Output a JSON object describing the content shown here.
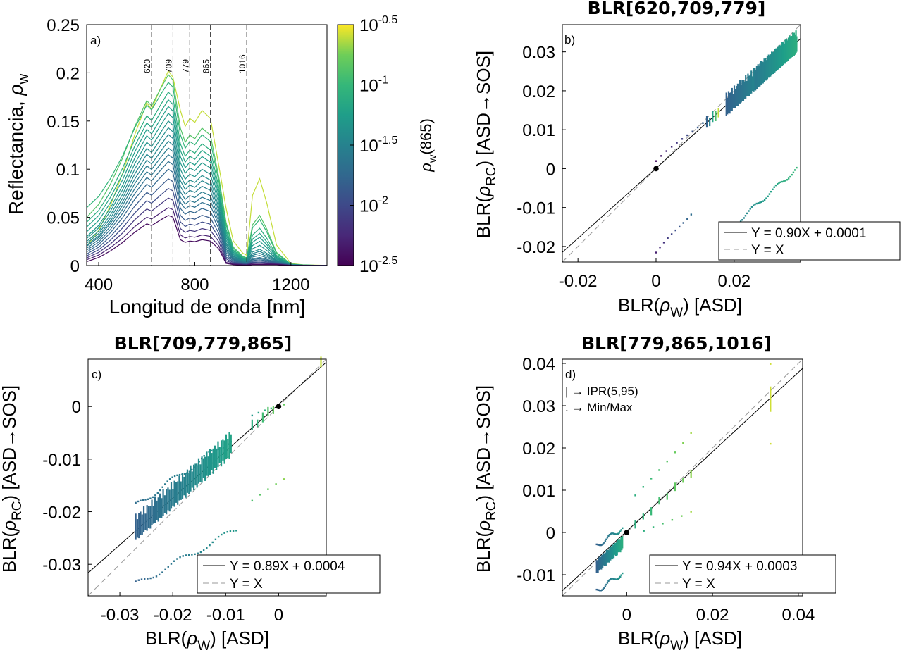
{
  "chart_data": [
    {
      "type": "line",
      "panel_label": "a)",
      "xlabel": "Longitud de onda [nm]",
      "ylabel": "Reflectancia, ",
      "ylabel_sym": "ρ",
      "ylabel_sub": "w",
      "xlim": [
        350,
        1350
      ],
      "ylim": [
        0,
        0.25
      ],
      "xticks": [
        400,
        800,
        1200
      ],
      "yticks": [
        0,
        0.05,
        0.1,
        0.15,
        0.2,
        0.25
      ],
      "ytick_labels": [
        "0",
        "0.05",
        "0.1",
        "0.15",
        "0.2",
        "0.25"
      ],
      "vlines": [
        {
          "x": 620,
          "label": "620"
        },
        {
          "x": 709,
          "label": "709"
        },
        {
          "x": 779,
          "label": "779"
        },
        {
          "x": 865,
          "label": "865"
        },
        {
          "x": 1016,
          "label": "1016"
        }
      ],
      "colorbar": {
        "label_sym": "ρ",
        "label_sub": "w",
        "label_rest": "(865)",
        "scale": "log",
        "range_exp": [
          -2.5,
          -0.5
        ],
        "ticks": [
          {
            "base": "10",
            "exp": "-2.5"
          },
          {
            "base": "10",
            "exp": "-2"
          },
          {
            "base": "10",
            "exp": "-1.5"
          },
          {
            "base": "10",
            "exp": "-1"
          },
          {
            "base": "10",
            "exp": "-0.5"
          }
        ]
      },
      "spectra": [
        {
          "peak": 0.202,
          "p865": 0.213,
          "p1070": 0.086,
          "base": 0.02,
          "cval": 0.95
        },
        {
          "peak": 0.198,
          "p865": 0.16,
          "p1070": 0.048,
          "base": 0.05,
          "cval": 0.82
        },
        {
          "peak": 0.19,
          "p865": 0.15,
          "p1070": 0.044,
          "base": 0.06,
          "cval": 0.74
        },
        {
          "peak": 0.18,
          "p865": 0.135,
          "p1070": 0.035,
          "base": 0.045,
          "cval": 0.7
        },
        {
          "peak": 0.172,
          "p865": 0.125,
          "p1070": 0.03,
          "base": 0.04,
          "cval": 0.66
        },
        {
          "peak": 0.165,
          "p865": 0.115,
          "p1070": 0.026,
          "base": 0.035,
          "cval": 0.62
        },
        {
          "peak": 0.158,
          "p865": 0.105,
          "p1070": 0.022,
          "base": 0.03,
          "cval": 0.6
        },
        {
          "peak": 0.15,
          "p865": 0.095,
          "p1070": 0.018,
          "base": 0.028,
          "cval": 0.57
        },
        {
          "peak": 0.143,
          "p865": 0.085,
          "p1070": 0.014,
          "base": 0.025,
          "cval": 0.55
        },
        {
          "peak": 0.136,
          "p865": 0.078,
          "p1070": 0.012,
          "base": 0.023,
          "cval": 0.52
        },
        {
          "peak": 0.129,
          "p865": 0.07,
          "p1070": 0.01,
          "base": 0.021,
          "cval": 0.5
        },
        {
          "peak": 0.122,
          "p865": 0.062,
          "p1070": 0.008,
          "base": 0.02,
          "cval": 0.47
        },
        {
          "peak": 0.115,
          "p865": 0.055,
          "p1070": 0.006,
          "base": 0.018,
          "cval": 0.44
        },
        {
          "peak": 0.108,
          "p865": 0.048,
          "p1070": 0.005,
          "base": 0.016,
          "cval": 0.41
        },
        {
          "peak": 0.1,
          "p865": 0.04,
          "p1070": 0.004,
          "base": 0.014,
          "cval": 0.37
        },
        {
          "peak": 0.09,
          "p865": 0.032,
          "p1070": 0.003,
          "base": 0.012,
          "cval": 0.32
        },
        {
          "peak": 0.08,
          "p865": 0.025,
          "p1070": 0.002,
          "base": 0.01,
          "cval": 0.26
        },
        {
          "peak": 0.07,
          "p865": 0.018,
          "p1070": 0.001,
          "base": 0.008,
          "cval": 0.18
        },
        {
          "peak": 0.06,
          "p865": 0.012,
          "p1070": 0.001,
          "base": 0.006,
          "cval": 0.1
        },
        {
          "peak": 0.052,
          "p865": 0.008,
          "p1070": 0.0,
          "base": 0.004,
          "cval": 0.03
        }
      ]
    },
    {
      "type": "scatter",
      "title": "BLR[620,709,779]",
      "panel_label": "b)",
      "xlabel_pre": "BLR(",
      "xlabel_sym": "ρ",
      "xlabel_sub": "W",
      "xlabel_post": ") [ASD]",
      "ylabel_pre": "BLR(",
      "ylabel_sym": "ρ",
      "ylabel_sub": "RC",
      "ylabel_post": ") [ASD→SOS]",
      "xlim": [
        -0.024,
        0.037
      ],
      "ylim": [
        -0.024,
        0.037
      ],
      "xticks": [
        -0.02,
        0,
        0.02
      ],
      "xtick_labels": [
        "-0.02",
        "0",
        "0.02"
      ],
      "yticks": [
        -0.02,
        -0.01,
        0,
        0.01,
        0.02,
        0.03
      ],
      "ytick_labels": [
        "-0.02",
        "-0.01",
        "0",
        "0.01",
        "0.02",
        "0.03"
      ],
      "fit": {
        "slope": 0.9,
        "intercept": 0.0001,
        "label": "Y = 0.90X + 0.0001"
      },
      "identity_label": "Y = X",
      "legend_position": "bottom-right",
      "clusters": [
        {
          "x0": 0.025,
          "x1": 0.036,
          "n": 70,
          "slope": 0.9,
          "off": 0.0,
          "len": 0.006,
          "c0": 0.45,
          "c1": 0.7
        },
        {
          "x0": 0.018,
          "x1": 0.025,
          "n": 25,
          "slope": 0.9,
          "off": 0.0,
          "len": 0.006,
          "c0": 0.35,
          "c1": 0.5
        },
        {
          "x0": 0.013,
          "x1": 0.016,
          "n": 5,
          "slope": 0.9,
          "off": 0.0,
          "len": 0.003,
          "c0": 0.35,
          "c1": 0.95
        }
      ],
      "dots": [
        {
          "x0": 0.018,
          "x1": 0.036,
          "n": 45,
          "slope": 0.9,
          "off": -0.0325,
          "c0": 0.45,
          "c1": 0.75
        },
        {
          "x0": 0.0,
          "x1": 0.009,
          "n": 10,
          "slope": 1.2,
          "off": -0.022,
          "c0": 0.1,
          "c1": 0.4
        },
        {
          "x0": 0.0,
          "x1": 0.012,
          "n": 10,
          "slope": 0.9,
          "off": 0.0015,
          "c0": 0.05,
          "c1": 0.35
        }
      ],
      "black_dot": [
        0,
        0
      ]
    },
    {
      "type": "scatter",
      "title": "BLR[709,779,865]",
      "panel_label": "c)",
      "xlabel_pre": "BLR(",
      "xlabel_sym": "ρ",
      "xlabel_sub": "W",
      "xlabel_post": ") [ASD]",
      "ylabel_pre": "BLR(",
      "ylabel_sym": "ρ",
      "ylabel_sub": "RC",
      "ylabel_post": ") [ASD→SOS]",
      "xlim": [
        -0.036,
        0.009
      ],
      "ylim": [
        -0.036,
        0.009
      ],
      "xticks": [
        -0.03,
        -0.02,
        -0.01,
        0
      ],
      "xtick_labels": [
        "-0.03",
        "-0.02",
        "-0.01",
        "0"
      ],
      "yticks": [
        -0.03,
        -0.02,
        -0.01,
        0
      ],
      "ytick_labels": [
        "-0.03",
        "-0.02",
        "-0.01",
        "0"
      ],
      "fit": {
        "slope": 0.89,
        "intercept": 0.0004,
        "label": "Y = 0.89X + 0.0004"
      },
      "identity_label": "Y = X",
      "legend_position": "bottom-right",
      "clusters": [
        {
          "x0": -0.027,
          "x1": -0.009,
          "n": 60,
          "slope": 0.89,
          "off": 0.0008,
          "len": 0.005,
          "c0": 0.35,
          "c1": 0.65
        },
        {
          "x0": -0.005,
          "x1": -0.001,
          "n": 5,
          "slope": 0.89,
          "off": 0.0006,
          "len": 0.002,
          "c0": 0.7,
          "c1": 0.85
        },
        {
          "x0": 0.008,
          "x1": 0.008,
          "n": 1,
          "slope": 0.89,
          "off": 0.001,
          "len": 0.002,
          "c0": 0.95,
          "c1": 0.95
        }
      ],
      "dots": [
        {
          "x0": -0.027,
          "x1": -0.009,
          "n": 40,
          "slope": 0.7,
          "off": 0.0,
          "c0": 0.4,
          "c1": 0.6
        },
        {
          "x0": -0.027,
          "x1": -0.008,
          "n": 35,
          "slope": 0.55,
          "off": -0.019,
          "c0": 0.35,
          "c1": 0.6
        },
        {
          "x0": -0.005,
          "x1": 0.001,
          "n": 5,
          "slope": 0.8,
          "off": -0.0145,
          "c0": 0.8,
          "c1": 0.9
        },
        {
          "x0": -0.005,
          "x1": 0.001,
          "n": 6,
          "slope": 0.5,
          "off": 0.0002,
          "c0": 0.6,
          "c1": 0.85
        }
      ],
      "black_dot": [
        0,
        0
      ]
    },
    {
      "type": "scatter",
      "title": "BLR[779,865,1016]",
      "panel_label": "d)",
      "annotations": [
        "| → IPR(5,95)",
        ". → Min/Max"
      ],
      "xlabel_pre": "BLR(",
      "xlabel_sym": "ρ",
      "xlabel_sub": "W",
      "xlabel_post": ") [ASD]",
      "ylabel_pre": "BLR(",
      "ylabel_sym": "ρ",
      "ylabel_sub": "RC",
      "ylabel_post": ") [ASD→SOS]",
      "xlim": [
        -0.015,
        0.041
      ],
      "ylim": [
        -0.015,
        0.041
      ],
      "xticks": [
        0,
        0.02,
        0.04
      ],
      "xtick_labels": [
        "0",
        "0.02",
        "0.04"
      ],
      "yticks": [
        -0.01,
        0,
        0.01,
        0.02,
        0.03,
        0.04
      ],
      "ytick_labels": [
        "-0.01",
        "0",
        "0.01",
        "0.02",
        "0.03",
        "0.04"
      ],
      "fit": {
        "slope": 0.94,
        "intercept": 0.0003,
        "label": "Y = 0.94X + 0.0003"
      },
      "identity_label": "Y = X",
      "legend_position": "bottom-right",
      "clusters": [
        {
          "x0": -0.007,
          "x1": -0.001,
          "n": 40,
          "slope": 0.94,
          "off": -0.0015,
          "len": 0.003,
          "c0": 0.35,
          "c1": 0.7
        },
        {
          "x0": 0.002,
          "x1": 0.015,
          "n": 8,
          "slope": 0.94,
          "off": 0.0,
          "len": 0.002,
          "c0": 0.7,
          "c1": 0.9
        },
        {
          "x0": 0.0335,
          "x1": 0.0335,
          "n": 1,
          "slope": 0.94,
          "off": 0.0,
          "len": 0.006,
          "c0": 0.96,
          "c1": 0.96
        }
      ],
      "dots": [
        {
          "x0": -0.007,
          "x1": -0.001,
          "n": 25,
          "slope": 0.7,
          "off": 0.0017,
          "c0": 0.35,
          "c1": 0.6
        },
        {
          "x0": -0.007,
          "x1": -0.001,
          "n": 25,
          "slope": 0.7,
          "off": -0.009,
          "c0": 0.35,
          "c1": 0.6
        },
        {
          "x0": 0.002,
          "x1": 0.015,
          "n": 8,
          "slope": 1.2,
          "off": 0.006,
          "c0": 0.7,
          "c1": 0.92
        },
        {
          "x0": 0.004,
          "x1": 0.015,
          "n": 6,
          "slope": 0.5,
          "off": -0.002,
          "c0": 0.7,
          "c1": 0.92
        },
        {
          "x0": 0.0335,
          "x1": 0.0335,
          "n": 1,
          "slope": 1.2,
          "off": -0.0007,
          "c0": 0.96,
          "c1": 0.96
        },
        {
          "x0": 0.0335,
          "x1": 0.0335,
          "n": 1,
          "slope": 0.6,
          "off": 0.0005,
          "c0": 0.96,
          "c1": 0.96
        }
      ],
      "black_dot": [
        0,
        0
      ]
    }
  ]
}
